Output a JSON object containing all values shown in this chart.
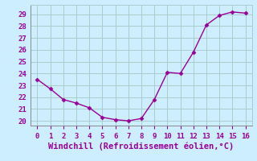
{
  "x": [
    0,
    1,
    2,
    3,
    4,
    5,
    6,
    7,
    8,
    9,
    10,
    11,
    12,
    13,
    14,
    15,
    16
  ],
  "y": [
    23.5,
    22.7,
    21.8,
    21.5,
    21.1,
    20.3,
    20.1,
    20.0,
    20.2,
    21.8,
    24.1,
    24.0,
    25.8,
    28.1,
    28.9,
    29.2,
    29.1
  ],
  "line_color": "#990099",
  "marker": "D",
  "markersize": 2.5,
  "linewidth": 1.0,
  "bg_color": "#cceeff",
  "grid_color": "#aacccc",
  "xlabel": "Windchill (Refroidissement éolien,°C)",
  "xlabel_color": "#990099",
  "xlabel_fontsize": 7.5,
  "tick_color": "#990099",
  "tick_fontsize": 6.5,
  "ylim": [
    19.6,
    29.8
  ],
  "xlim": [
    -0.5,
    16.5
  ],
  "yticks": [
    20,
    21,
    22,
    23,
    24,
    25,
    26,
    27,
    28,
    29
  ],
  "xticks": [
    0,
    1,
    2,
    3,
    4,
    5,
    6,
    7,
    8,
    9,
    10,
    11,
    12,
    13,
    14,
    15,
    16
  ]
}
